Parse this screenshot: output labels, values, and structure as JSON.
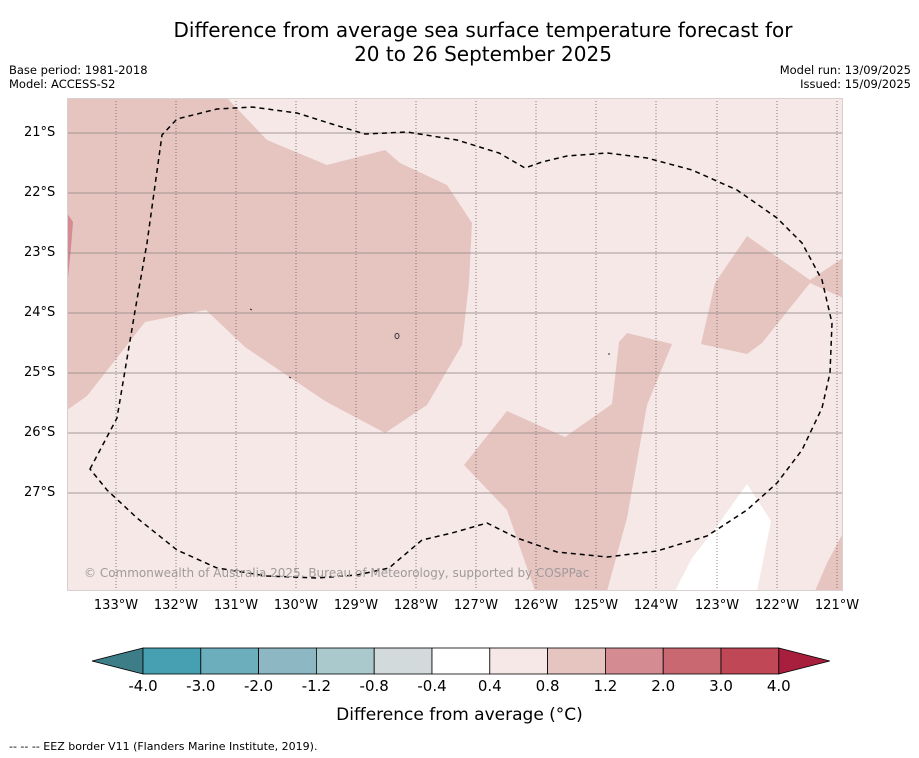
{
  "title": {
    "line1": "Difference from average sea surface temperature forecast for",
    "line2": "20 to 26 September 2025"
  },
  "meta": {
    "base_period": "Base period: 1981-2018",
    "model": "Model: ACCESS-S2",
    "model_run": "Model run: 13/09/2025",
    "issued": "Issued: 15/09/2025"
  },
  "map": {
    "latitude_labels": [
      "21°S",
      "22°S",
      "23°S",
      "24°S",
      "25°S",
      "26°S",
      "27°S"
    ],
    "longitude_labels": [
      "133°W",
      "132°W",
      "131°W",
      "130°W",
      "129°W",
      "128°W",
      "127°W",
      "126°W",
      "125°W",
      "124°W",
      "123°W",
      "122°W",
      "121°W"
    ],
    "lon_range": [
      "133.8°W",
      "120.9°W"
    ],
    "lat_range": [
      "20.4°S",
      "28.6°S"
    ],
    "copyright": "© Commonwealth of Australia 2025, Bureau of Meteorology, supported by COSPPac",
    "colors": {
      "anomaly_0_4_to_0_8": "#f5e8e7",
      "anomaly_0_8_to_1_2": "#e6c5c1",
      "anomaly_1_2_to_2_0": "#d48b92",
      "anomaly_neutral": "#ffffff"
    }
  },
  "colorbar": {
    "ticks": [
      "-4.0",
      "-3.0",
      "-2.0",
      "-1.2",
      "-0.8",
      "-0.4",
      "0.4",
      "0.8",
      "1.2",
      "2.0",
      "3.0",
      "4.0"
    ],
    "colors": [
      "#3d7d87",
      "#46a0b1",
      "#6caebb",
      "#8db8c3",
      "#aac9cc",
      "#d2dadc",
      "#ffffff",
      "#f5e8e7",
      "#e6c5c1",
      "#d48b92",
      "#c96870",
      "#bf4756",
      "#a81f3e"
    ],
    "label": "Difference from average (°C)"
  },
  "footer": "--  --  -- EEZ border V11 (Flanders Marine Institute, 2019)."
}
